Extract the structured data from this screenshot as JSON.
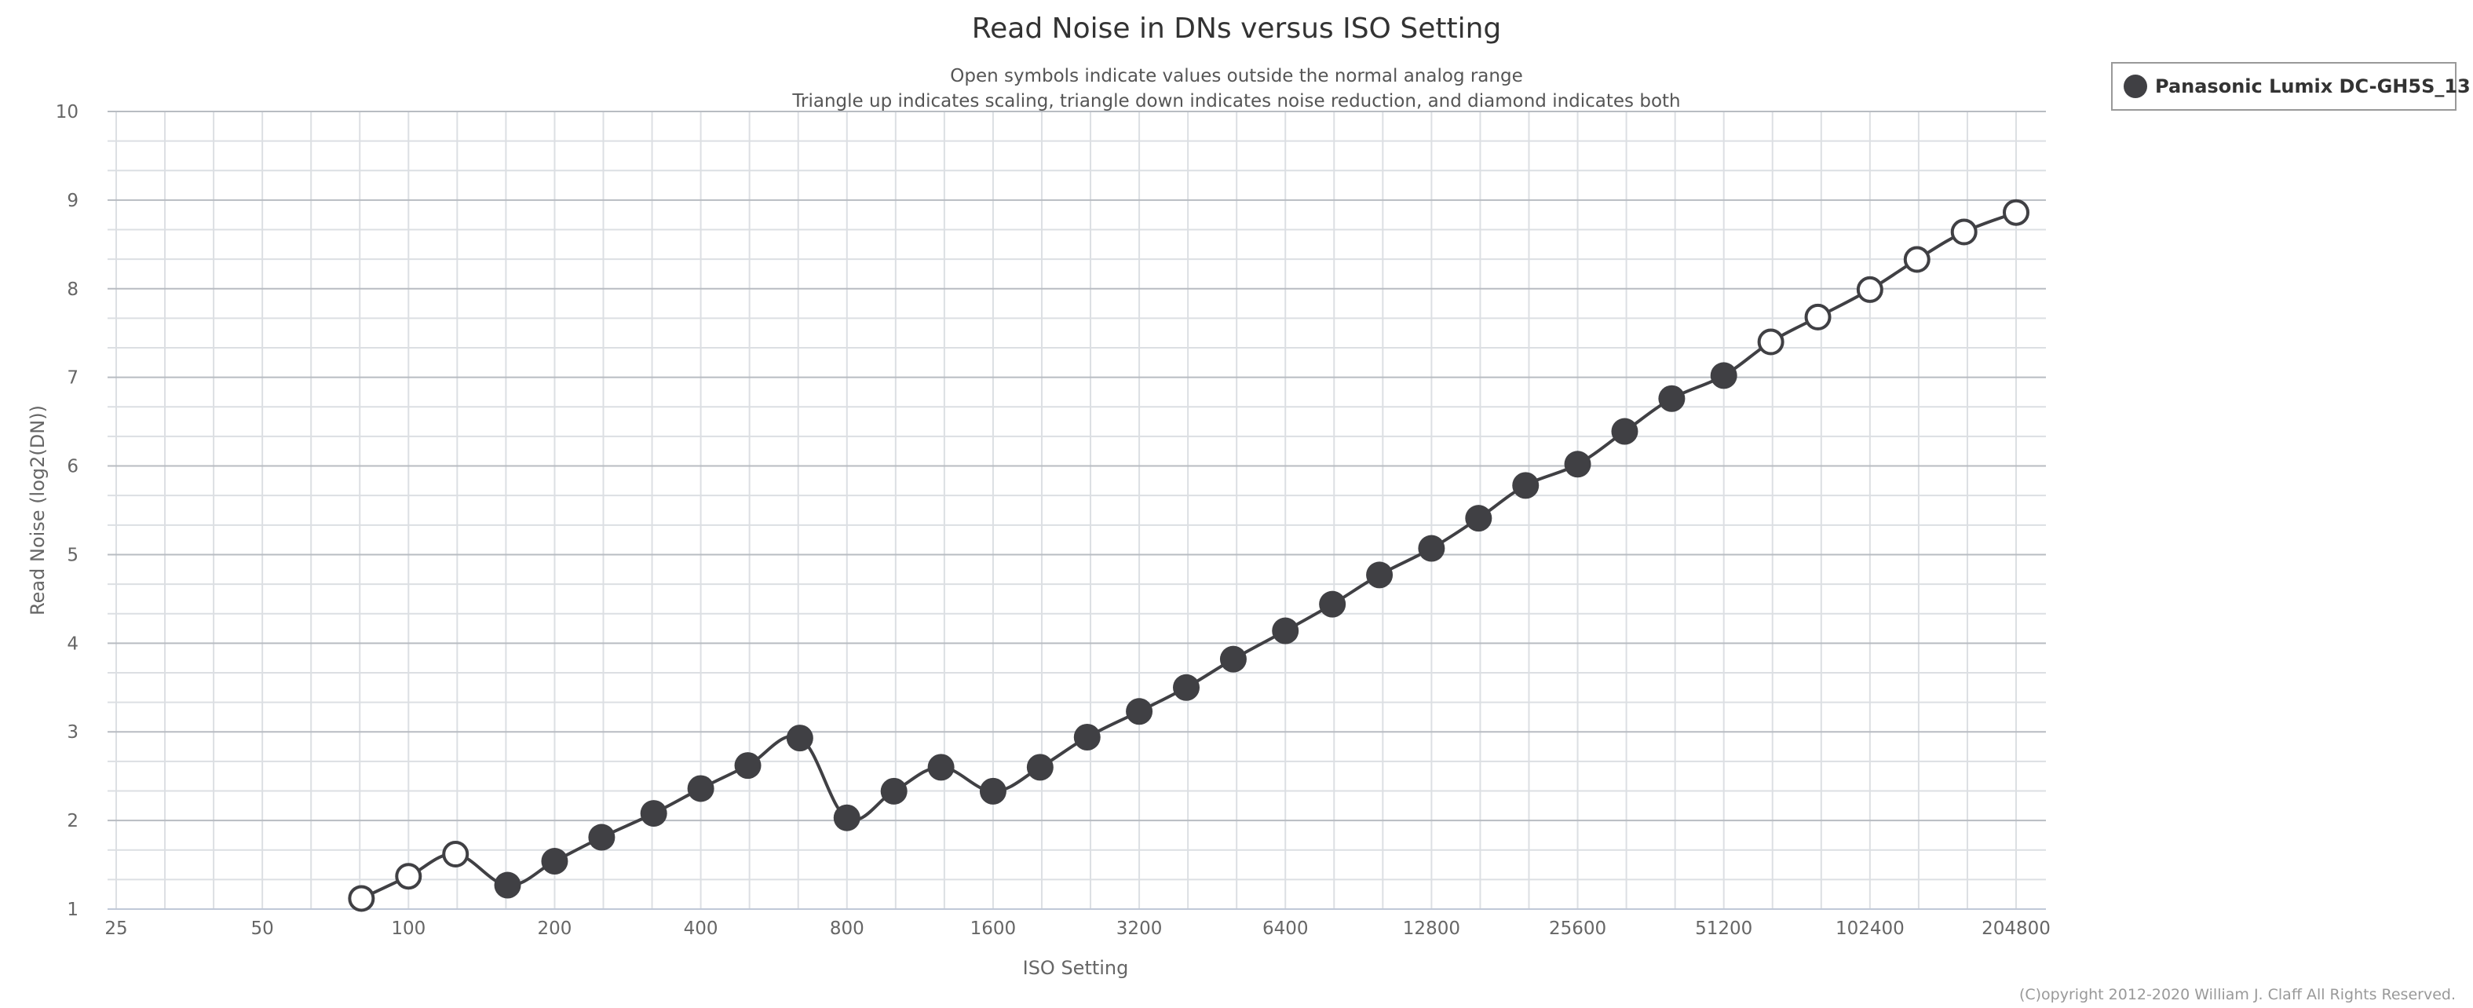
{
  "chart_data": {
    "type": "line",
    "title": "Read Noise in DNs versus ISO Setting",
    "subtitle": [
      "Open symbols indicate values outside the normal analog range",
      "Triangle up indicates scaling, triangle down indicates noise reduction, and diamond indicates both"
    ],
    "xlabel": "ISO Setting",
    "ylabel": "Read Noise (log2(DN))",
    "x_scale": "log2",
    "xlim": [
      25,
      204800
    ],
    "ylim": [
      1,
      10
    ],
    "x_ticks": [
      "25",
      "50",
      "100",
      "200",
      "400",
      "800",
      "1600",
      "3200",
      "6400",
      "12800",
      "25600",
      "51200",
      "102400",
      "204800"
    ],
    "y_ticks": [
      "1",
      "2",
      "3",
      "4",
      "5",
      "6",
      "7",
      "8",
      "9",
      "10"
    ],
    "grid": true,
    "legend_position": "top-right",
    "series": [
      {
        "name": "Panasonic Lumix DC-GH5S_13",
        "color": "#404044",
        "marker": "circle",
        "x": [
          80,
          100,
          125,
          160,
          200,
          250,
          320,
          400,
          500,
          640,
          800,
          1000,
          1250,
          1600,
          2000,
          2500,
          3200,
          4000,
          5000,
          6400,
          8000,
          10000,
          12800,
          16000,
          20000,
          25600,
          32000,
          40000,
          51200,
          64000,
          80000,
          102400,
          128000,
          160000,
          204800
        ],
        "y": [
          1.12,
          1.37,
          1.62,
          1.27,
          1.54,
          1.81,
          2.08,
          2.36,
          2.62,
          2.93,
          2.03,
          2.33,
          2.6,
          2.33,
          2.6,
          2.94,
          3.23,
          3.5,
          3.82,
          4.14,
          4.44,
          4.77,
          5.07,
          5.41,
          5.78,
          6.02,
          6.39,
          6.76,
          7.02,
          7.4,
          7.68,
          7.99,
          8.33,
          8.64,
          8.86
        ],
        "open": [
          true,
          true,
          true,
          false,
          false,
          false,
          false,
          false,
          false,
          false,
          false,
          false,
          false,
          false,
          false,
          false,
          false,
          false,
          false,
          false,
          false,
          false,
          false,
          false,
          false,
          false,
          false,
          false,
          false,
          true,
          true,
          true,
          true,
          true,
          true
        ]
      }
    ]
  },
  "copyright": "(C)opyright 2012-2020 William J. Claff All Rights Reserved."
}
